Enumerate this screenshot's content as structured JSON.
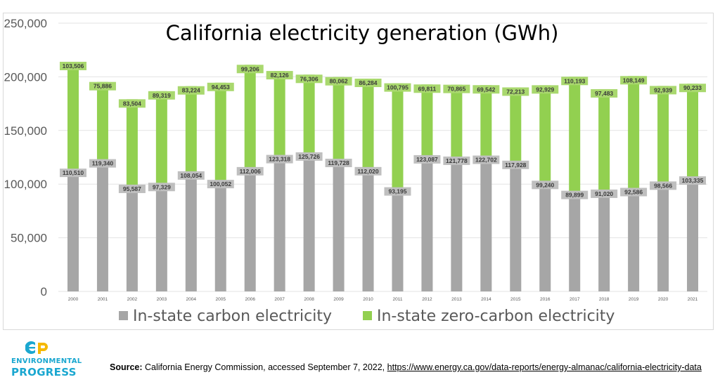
{
  "chart_data": {
    "type": "bar",
    "stacked": true,
    "title": "California electricity generation (GWh)",
    "categories": [
      "2000",
      "2001",
      "2002",
      "2003",
      "2004",
      "2005",
      "2006",
      "2007",
      "2008",
      "2009",
      "2010",
      "2011",
      "2012",
      "2013",
      "2014",
      "2015",
      "2016",
      "2017",
      "2018",
      "2019",
      "2020",
      "2021"
    ],
    "series": [
      {
        "name": "In-state carbon electricity",
        "color": "#a6a6a6",
        "values": [
          110510,
          119340,
          95587,
          97329,
          108054,
          100052,
          112006,
          123318,
          125726,
          119728,
          112020,
          93195,
          123087,
          121778,
          122702,
          117928,
          99240,
          89899,
          91020,
          92586,
          98566,
          103335
        ],
        "labels": [
          "110,510",
          "119,340",
          "95,587",
          "97,329",
          "108,054",
          "100,052",
          "112,006",
          "123,318",
          "125,726",
          "119,728",
          "112,020",
          "93,195",
          "123,087",
          "121,778",
          "122,702",
          "117,928",
          "99,240",
          "89,899",
          "91,020",
          "92,586",
          "98,566",
          "103,335"
        ]
      },
      {
        "name": "In-state zero-carbon electricity",
        "color": "#92d050",
        "values": [
          103506,
          75886,
          83504,
          89319,
          83224,
          94453,
          99206,
          82126,
          76306,
          80062,
          86284,
          100795,
          69811,
          70865,
          69542,
          72213,
          92929,
          110193,
          97483,
          108149,
          92939,
          90233
        ],
        "labels": [
          "103,506",
          "75,886",
          "83,504",
          "89,319",
          "83,224",
          "94,453",
          "99,206",
          "82,126",
          "76,306",
          "80,062",
          "86,284",
          "100,795",
          "69,811",
          "70,865",
          "69,542",
          "72,213",
          "92,929",
          "110,193",
          "97,483",
          "108,149",
          "92,939",
          "90,233"
        ]
      }
    ],
    "ylim": [
      0,
      250000
    ],
    "yticks": [
      "0",
      "50,000",
      "100,000",
      "150,000",
      "200,000",
      "250,000"
    ],
    "grid": true,
    "legend_position": "bottom",
    "data_label_fill": "#bfbfbf",
    "data_label_fill_green": "#a9d86e"
  },
  "logo": {
    "line1": "ENVIRONMENTAL",
    "line2": "PROGRESS",
    "color": "#1aa7d0",
    "accent": "#f5b800"
  },
  "source": {
    "label": "Source:",
    "text": " California Energy Commission,  accessed September 7, 2022, ",
    "url": "https://www.energy.ca.gov/data-reports/energy-almanac/california-electricity-data"
  }
}
